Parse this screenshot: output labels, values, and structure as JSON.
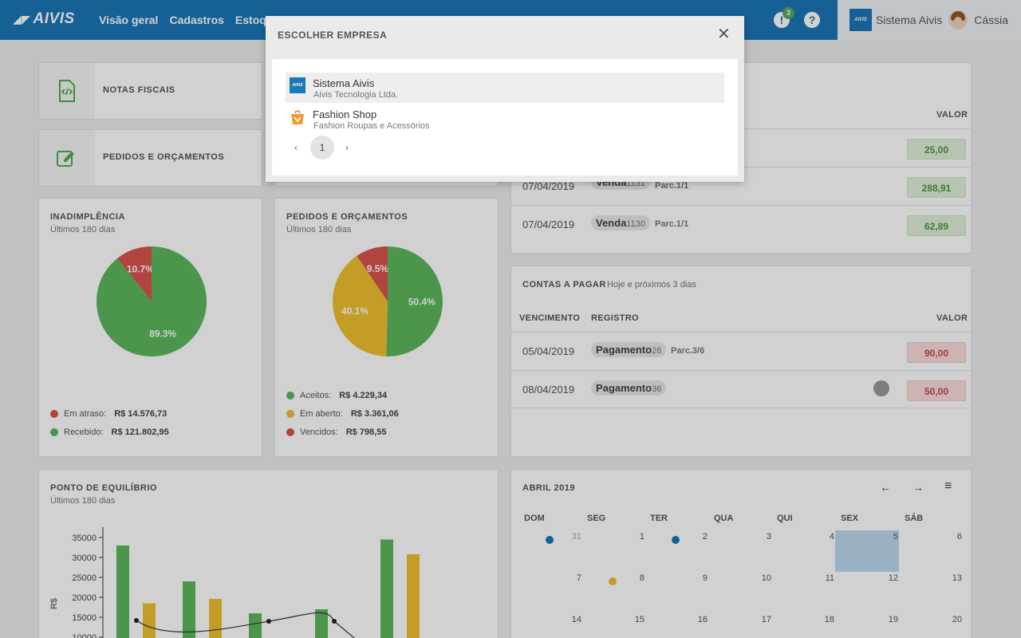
{
  "topbar": {
    "logo": "AIVIS",
    "nav": [
      "Visão geral",
      "Cadastros",
      "Estoques"
    ],
    "notifications_badge": "3",
    "notifications_icon": "!",
    "help_icon": "?",
    "app_logo": "AIVIS",
    "system_name": "Sistema Aivis",
    "user_name": "Cássia"
  },
  "quick_links": {
    "notas": "NOTAS FISCAIS",
    "pedidos": "PEDIDOS E ORÇAMENTOS"
  },
  "inadimplencia": {
    "title": "INADIMPLÊNCIA",
    "subtitle": "Últimos 180 dias",
    "legend": [
      {
        "label": "Em atraso:",
        "value": "R$ 14.576,73",
        "color": "#d9534f"
      },
      {
        "label": "Recebido:",
        "value": "R$ 121.802,95",
        "color": "#5cb85c"
      }
    ]
  },
  "pedidos": {
    "title": "PEDIDOS E ORÇAMENTOS",
    "subtitle": "Últimos 180 dias",
    "legend": [
      {
        "label": "Aceitos:",
        "value": "R$ 4.229,34",
        "color": "#5cb85c"
      },
      {
        "label": "Em aberto:",
        "value": "R$ 3.361,06",
        "color": "#f0c030"
      },
      {
        "label": "Vencidos:",
        "value": "R$ 798,55",
        "color": "#d9534f"
      }
    ]
  },
  "chart_data": [
    {
      "type": "pie",
      "title": "INADIMPLÊNCIA",
      "categories": [
        "Em atraso",
        "Recebido"
      ],
      "values": [
        10.7,
        89.3
      ],
      "labels": [
        "10.7%",
        "89.3%"
      ],
      "colors": [
        "#d9534f",
        "#5cb85c"
      ]
    },
    {
      "type": "pie",
      "title": "PEDIDOS E ORÇAMENTOS",
      "categories": [
        "Vencidos",
        "Aceitos",
        "Em aberto"
      ],
      "values": [
        9.5,
        50.4,
        40.1
      ],
      "labels": [
        "9.5%",
        "50.4%",
        "40.1%"
      ],
      "colors": [
        "#d9534f",
        "#5cb85c",
        "#f0c030"
      ]
    },
    {
      "type": "bar",
      "title": "PONTO DE EQUILÍBRIO",
      "subtitle": "Últimos 180 dias",
      "ylabel": "R$",
      "yticks": [
        10000,
        15000,
        20000,
        25000,
        30000,
        35000
      ],
      "ylim": [
        10000,
        37000
      ],
      "series": [
        {
          "values": [
            33000,
            24000,
            16000,
            17000,
            34500
          ],
          "color": "#5cb85c"
        },
        {
          "values": [
            18500,
            19600,
            null,
            null,
            30800
          ],
          "color": "#f0c030"
        }
      ],
      "line": [
        14500,
        11000,
        14200,
        15400,
        14200,
        11000
      ]
    }
  ],
  "receber": {
    "valor_header": "VALOR",
    "rows": [
      {
        "date": "",
        "reg": "",
        "num": "",
        "parc": "",
        "value": "25,00"
      },
      {
        "date": "07/04/2019",
        "reg": "Venda",
        "num": "1131",
        "parc": "Parc.1/1",
        "value": "288,91"
      },
      {
        "date": "07/04/2019",
        "reg": "Venda",
        "num": "1130",
        "parc": "Parc.1/1",
        "value": "62,89"
      }
    ]
  },
  "pagar": {
    "title": "CONTAS A PAGAR",
    "subtitle": "Hoje e próximos 3 dias",
    "headers": {
      "vencimento": "VENCIMENTO",
      "registro": "REGISTRO",
      "valor": "VALOR"
    },
    "rows": [
      {
        "date": "05/04/2019",
        "reg": "Pagamento",
        "num": "26",
        "parc": "Parc.3/6",
        "value": "90,00"
      },
      {
        "date": "08/04/2019",
        "reg": "Pagamento",
        "num": "36",
        "parc": "",
        "value": "50,00"
      }
    ]
  },
  "calendar": {
    "title": "ABRIL 2019",
    "weekdays": [
      "DOM",
      "SEG",
      "TER",
      "QUA",
      "QUI",
      "SEX",
      "SÁB"
    ],
    "weeks": [
      [
        "31",
        "1",
        "2",
        "3",
        "4",
        "5",
        "6"
      ],
      [
        "7",
        "8",
        "9",
        "10",
        "11",
        "12",
        "13"
      ],
      [
        "14",
        "15",
        "16",
        "17",
        "18",
        "19",
        "20"
      ]
    ],
    "prev_icon": "←",
    "next_icon": "→",
    "menu_icon": "≡"
  },
  "modal": {
    "title": "ESCOLHER EMPRESA",
    "close_icon": "✕",
    "companies": [
      {
        "name": "Sistema Aivis",
        "sub": "Aivis Tecnologia Ltda."
      },
      {
        "name": "Fashion Shop",
        "sub": "Fashion Roupas e Acessórios"
      }
    ],
    "pager": {
      "prev": "‹",
      "current": "1",
      "next": "›"
    }
  }
}
